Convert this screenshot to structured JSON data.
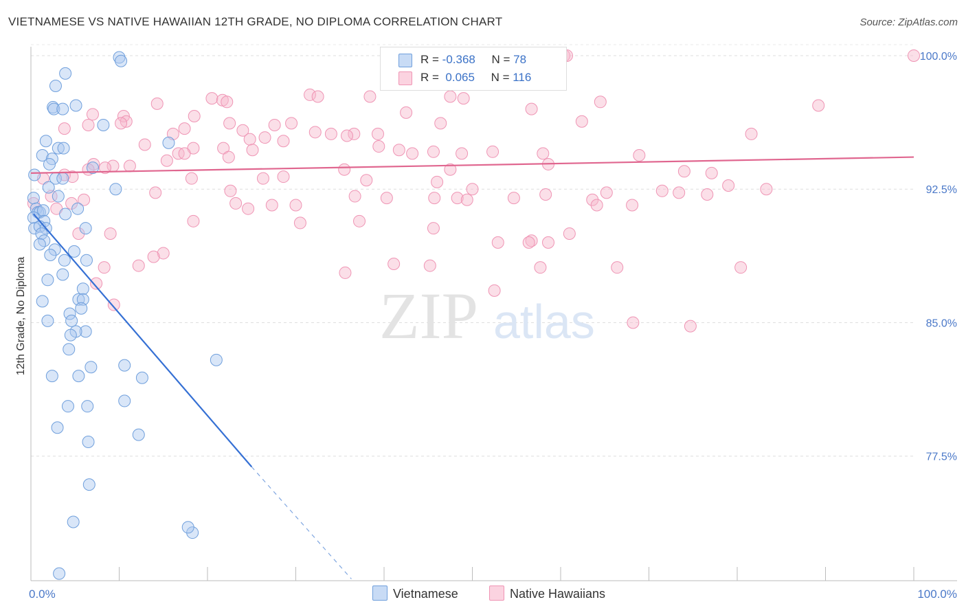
{
  "header": {
    "title": "VIETNAMESE VS NATIVE HAWAIIAN 12TH GRADE, NO DIPLOMA CORRELATION CHART",
    "source": "Source: ZipAtlas.com"
  },
  "watermark": {
    "zip": "ZIP",
    "atlas": "atlas"
  },
  "legend": {
    "r_label": "R =",
    "n_label": "N =",
    "rows": [
      {
        "r": "-0.368",
        "n": "78",
        "color": "#aac8ef"
      },
      {
        "r": "0.065",
        "n": "116",
        "color": "#f7b8cc"
      }
    ]
  },
  "bottom_legend": [
    "Vietnamese",
    "Native Hawaiians"
  ],
  "chart_data": {
    "type": "scatter",
    "title": "VIETNAMESE VS NATIVE HAWAIIAN 12TH GRADE, NO DIPLOMA CORRELATION CHART",
    "ylabel": "12th Grade, No Diploma",
    "xlim": [
      0,
      100
    ],
    "ylim": [
      70.5,
      100.5
    ],
    "y_ticks": [
      77.5,
      85.0,
      92.5,
      100.0
    ],
    "y_tick_labels": [
      "77.5%",
      "85.0%",
      "92.5%",
      "100.0%"
    ],
    "x_tick_labels": [
      "0.0%",
      "100.0%"
    ],
    "grid": true,
    "legend_position": "top-center",
    "series": [
      {
        "name": "Vietnamese",
        "color": "#6f9fdc",
        "fill": "#aac8ef",
        "trend": {
          "x": [
            0.3,
            25.0
          ],
          "y": [
            91.1,
            76.9
          ],
          "dashed_to": [
            36.3,
            70.6
          ]
        },
        "points": [
          [
            10.0,
            99.9
          ],
          [
            10.2,
            99.7
          ],
          [
            3.9,
            99.0
          ],
          [
            2.8,
            98.3
          ],
          [
            2.5,
            97.1
          ],
          [
            2.6,
            97.0
          ],
          [
            3.6,
            97.0
          ],
          [
            5.1,
            97.2
          ],
          [
            8.2,
            96.1
          ],
          [
            1.7,
            95.2
          ],
          [
            3.1,
            94.8
          ],
          [
            3.7,
            94.8
          ],
          [
            1.3,
            94.4
          ],
          [
            2.4,
            94.2
          ],
          [
            15.6,
            95.1
          ],
          [
            2.1,
            93.9
          ],
          [
            0.4,
            93.3
          ],
          [
            2.8,
            93.1
          ],
          [
            3.6,
            93.1
          ],
          [
            7.0,
            93.7
          ],
          [
            9.6,
            92.5
          ],
          [
            2.0,
            92.6
          ],
          [
            3.1,
            92.1
          ],
          [
            0.3,
            92.0
          ],
          [
            0.6,
            91.4
          ],
          [
            0.8,
            91.2
          ],
          [
            1.0,
            91.2
          ],
          [
            1.4,
            91.3
          ],
          [
            5.3,
            91.4
          ],
          [
            3.9,
            91.1
          ],
          [
            0.3,
            90.9
          ],
          [
            1.5,
            90.7
          ],
          [
            0.4,
            90.3
          ],
          [
            1.0,
            90.4
          ],
          [
            1.7,
            90.3
          ],
          [
            6.2,
            90.3
          ],
          [
            1.2,
            90.0
          ],
          [
            1.5,
            89.6
          ],
          [
            2.7,
            89.1
          ],
          [
            4.9,
            89.0
          ],
          [
            1.0,
            89.4
          ],
          [
            2.2,
            88.8
          ],
          [
            3.8,
            88.5
          ],
          [
            6.3,
            88.5
          ],
          [
            3.6,
            87.7
          ],
          [
            1.9,
            87.4
          ],
          [
            5.9,
            86.9
          ],
          [
            5.4,
            86.3
          ],
          [
            5.9,
            86.3
          ],
          [
            1.3,
            86.2
          ],
          [
            4.4,
            85.5
          ],
          [
            5.7,
            85.8
          ],
          [
            4.6,
            85.1
          ],
          [
            1.9,
            85.1
          ],
          [
            6.2,
            84.5
          ],
          [
            5.1,
            84.5
          ],
          [
            4.5,
            84.3
          ],
          [
            4.3,
            83.5
          ],
          [
            21.0,
            82.9
          ],
          [
            10.6,
            82.6
          ],
          [
            6.8,
            82.5
          ],
          [
            2.4,
            82.0
          ],
          [
            5.4,
            82.0
          ],
          [
            12.6,
            81.9
          ],
          [
            10.6,
            80.6
          ],
          [
            4.2,
            80.3
          ],
          [
            6.4,
            80.3
          ],
          [
            3.0,
            79.1
          ],
          [
            12.2,
            78.7
          ],
          [
            6.5,
            78.3
          ],
          [
            6.6,
            75.9
          ],
          [
            4.8,
            73.8
          ],
          [
            18.3,
            73.2
          ],
          [
            17.8,
            73.5
          ],
          [
            3.2,
            70.9
          ]
        ]
      },
      {
        "name": "Native Hawaiians",
        "color": "#ef94b4",
        "fill": "#f7b8cc",
        "trend": {
          "x": [
            0.0,
            100.0
          ],
          "y": [
            93.4,
            94.3
          ]
        },
        "points": [
          [
            41.0,
            100.0
          ],
          [
            59.2,
            100.0
          ],
          [
            60.4,
            100.0
          ],
          [
            60.7,
            100.0
          ],
          [
            100.0,
            100.0
          ],
          [
            46.0,
            100.0
          ],
          [
            31.6,
            97.8
          ],
          [
            32.5,
            97.7
          ],
          [
            38.4,
            97.7
          ],
          [
            47.5,
            97.7
          ],
          [
            49.0,
            97.6
          ],
          [
            20.5,
            97.6
          ],
          [
            21.7,
            97.5
          ],
          [
            22.2,
            97.4
          ],
          [
            64.5,
            97.4
          ],
          [
            89.2,
            97.2
          ],
          [
            14.3,
            97.3
          ],
          [
            42.5,
            96.8
          ],
          [
            56.7,
            97.0
          ],
          [
            7.0,
            96.7
          ],
          [
            10.5,
            96.6
          ],
          [
            18.5,
            96.6
          ],
          [
            22.5,
            96.2
          ],
          [
            10.8,
            96.3
          ],
          [
            10.2,
            96.2
          ],
          [
            27.6,
            96.1
          ],
          [
            29.5,
            96.2
          ],
          [
            46.4,
            96.2
          ],
          [
            62.4,
            96.3
          ],
          [
            6.5,
            96.1
          ],
          [
            3.8,
            95.9
          ],
          [
            17.4,
            95.9
          ],
          [
            24.0,
            95.8
          ],
          [
            32.2,
            95.7
          ],
          [
            34.0,
            95.6
          ],
          [
            36.6,
            95.6
          ],
          [
            39.3,
            95.6
          ],
          [
            26.5,
            95.4
          ],
          [
            35.8,
            95.5
          ],
          [
            81.6,
            95.6
          ],
          [
            24.8,
            95.3
          ],
          [
            28.6,
            95.2
          ],
          [
            16.1,
            95.6
          ],
          [
            12.9,
            95.0
          ],
          [
            21.8,
            94.8
          ],
          [
            18.4,
            94.8
          ],
          [
            25.1,
            94.7
          ],
          [
            39.4,
            94.9
          ],
          [
            41.7,
            94.7
          ],
          [
            43.2,
            94.5
          ],
          [
            45.6,
            94.6
          ],
          [
            48.8,
            94.5
          ],
          [
            52.3,
            94.6
          ],
          [
            58.0,
            94.5
          ],
          [
            68.9,
            94.4
          ],
          [
            16.7,
            94.5
          ],
          [
            17.4,
            94.5
          ],
          [
            15.4,
            94.1
          ],
          [
            22.4,
            94.3
          ],
          [
            7.1,
            93.9
          ],
          [
            9.3,
            93.8
          ],
          [
            11.2,
            93.8
          ],
          [
            8.4,
            93.7
          ],
          [
            35.5,
            93.6
          ],
          [
            47.5,
            93.6
          ],
          [
            58.6,
            93.9
          ],
          [
            6.5,
            93.6
          ],
          [
            74.0,
            93.5
          ],
          [
            77.1,
            93.4
          ],
          [
            4.7,
            93.2
          ],
          [
            1.4,
            93.1
          ],
          [
            3.8,
            93.3
          ],
          [
            18.2,
            93.1
          ],
          [
            26.3,
            93.1
          ],
          [
            28.6,
            93.2
          ],
          [
            38.0,
            93.0
          ],
          [
            46.0,
            92.9
          ],
          [
            50.0,
            92.5
          ],
          [
            58.3,
            92.2
          ],
          [
            71.5,
            92.4
          ],
          [
            73.4,
            92.3
          ],
          [
            79.0,
            92.7
          ],
          [
            83.3,
            92.5
          ],
          [
            14.1,
            92.3
          ],
          [
            22.6,
            92.4
          ],
          [
            36.7,
            92.1
          ],
          [
            40.3,
            92.0
          ],
          [
            45.7,
            92.0
          ],
          [
            48.3,
            92.0
          ],
          [
            54.7,
            92.0
          ],
          [
            49.4,
            91.9
          ],
          [
            63.6,
            91.9
          ],
          [
            65.2,
            92.3
          ],
          [
            76.6,
            92.2
          ],
          [
            2.3,
            92.1
          ],
          [
            0.3,
            91.7
          ],
          [
            2.9,
            91.4
          ],
          [
            4.6,
            91.7
          ],
          [
            6.0,
            91.9
          ],
          [
            23.2,
            91.7
          ],
          [
            27.3,
            91.6
          ],
          [
            30.0,
            91.6
          ],
          [
            64.1,
            91.6
          ],
          [
            68.1,
            91.6
          ],
          [
            24.6,
            91.4
          ],
          [
            18.4,
            90.7
          ],
          [
            30.5,
            90.6
          ],
          [
            37.2,
            90.7
          ],
          [
            45.6,
            90.3
          ],
          [
            5.4,
            90.0
          ],
          [
            9.0,
            90.0
          ],
          [
            56.7,
            89.6
          ],
          [
            56.4,
            89.5
          ],
          [
            58.6,
            89.5
          ],
          [
            52.9,
            89.5
          ],
          [
            61.0,
            90.0
          ],
          [
            15.0,
            88.9
          ],
          [
            13.9,
            88.7
          ],
          [
            12.2,
            88.2
          ],
          [
            8.3,
            88.1
          ],
          [
            45.2,
            88.2
          ],
          [
            57.7,
            88.1
          ],
          [
            66.4,
            88.1
          ],
          [
            80.4,
            88.1
          ],
          [
            41.1,
            88.3
          ],
          [
            35.6,
            87.8
          ],
          [
            7.4,
            87.2
          ],
          [
            9.4,
            86.0
          ],
          [
            52.5,
            86.8
          ],
          [
            68.2,
            85.0
          ],
          [
            74.7,
            84.8
          ]
        ]
      }
    ]
  }
}
